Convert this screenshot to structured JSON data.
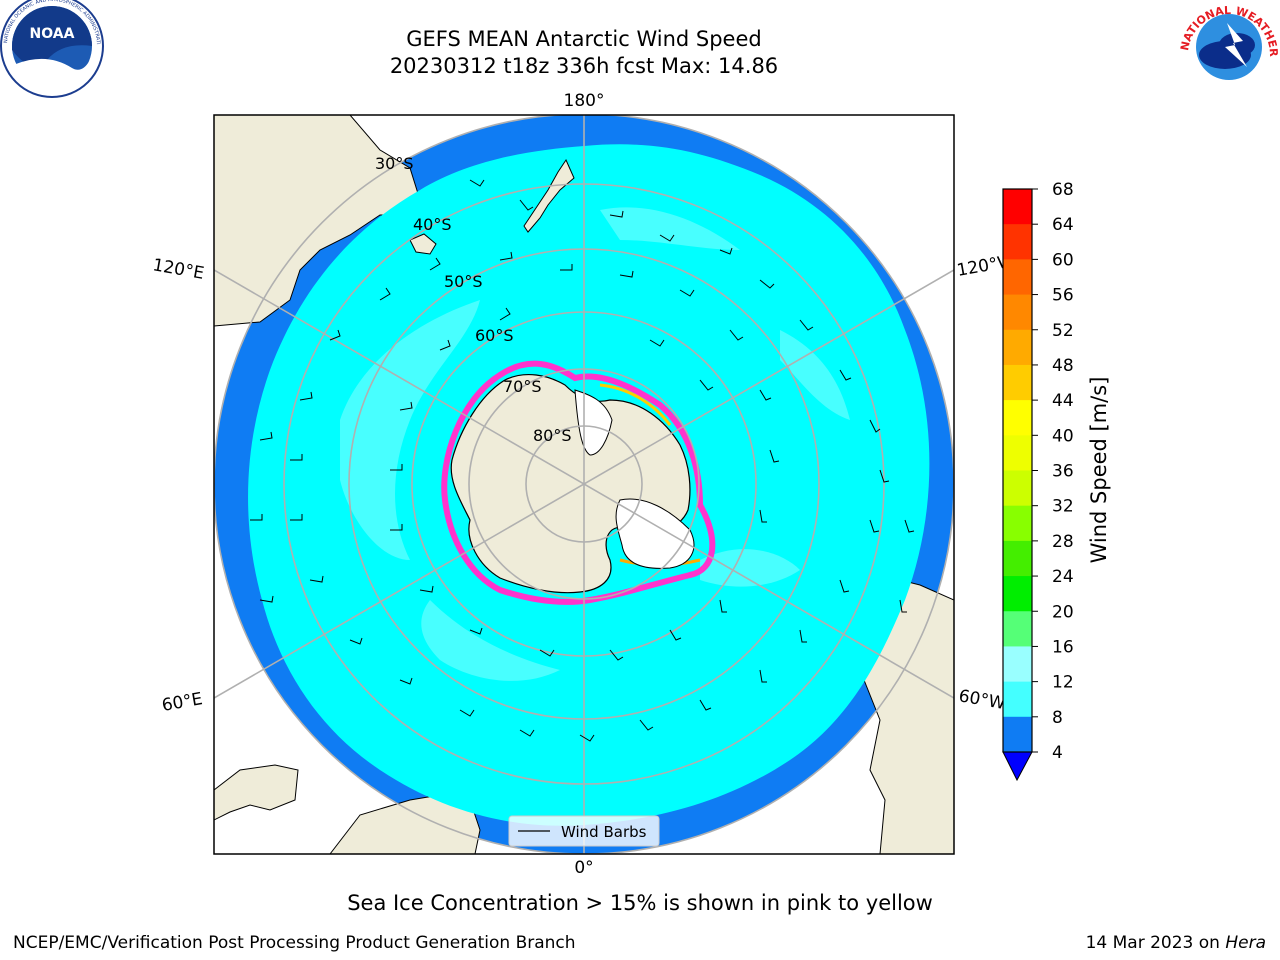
{
  "title_line1": "GEFS MEAN Antarctic Wind Speed",
  "title_line2": "20230312 t18z 336h fcst   Max: 14.86",
  "caption": "Sea Ice Concentration > 15% is shown in pink to yellow",
  "footer_left": "NCEP/EMC/Verification Post Processing Product Generation Branch",
  "footer_date": "14 Mar 2023 on",
  "footer_machine": "Hera",
  "logos": {
    "left": "NOAA",
    "right": "NATIONAL WEATHER SERVICE"
  },
  "map": {
    "projection": "south-polar-stereographic",
    "lon_labels": [
      "180°",
      "120°E",
      "120°W",
      "60°E",
      "60°W",
      "0°"
    ],
    "lat_labels": [
      "30°S",
      "40°S",
      "50°S",
      "60°S",
      "70°S",
      "80°S"
    ],
    "legend_label": "Wind Barbs",
    "colors": {
      "land": "#efecd9",
      "ocean_4_8": "#0f7cf3",
      "ocean_8_12": "#00ffff",
      "ocean_12_16": "#48ffff",
      "sea_ice": "#ff33cc",
      "grid": "#b0b0b0"
    }
  },
  "colorbar": {
    "label": "Wind Speed [m/s]",
    "ticks": [
      "68",
      "64",
      "60",
      "56",
      "52",
      "48",
      "44",
      "40",
      "36",
      "32",
      "28",
      "24",
      "20",
      "16",
      "12",
      "8",
      "4"
    ],
    "colors": [
      "#ff0000",
      "#ff3300",
      "#ff6600",
      "#ff8800",
      "#ffaa00",
      "#ffcc00",
      "#ffff00",
      "#eeff00",
      "#ccff00",
      "#88ff00",
      "#44ee00",
      "#00ee00",
      "#55ff77",
      "#99ffff",
      "#44ffff",
      "#00ffff"
    ],
    "under_color": "#0000ff",
    "bottom_color": "#0f7cf3"
  }
}
